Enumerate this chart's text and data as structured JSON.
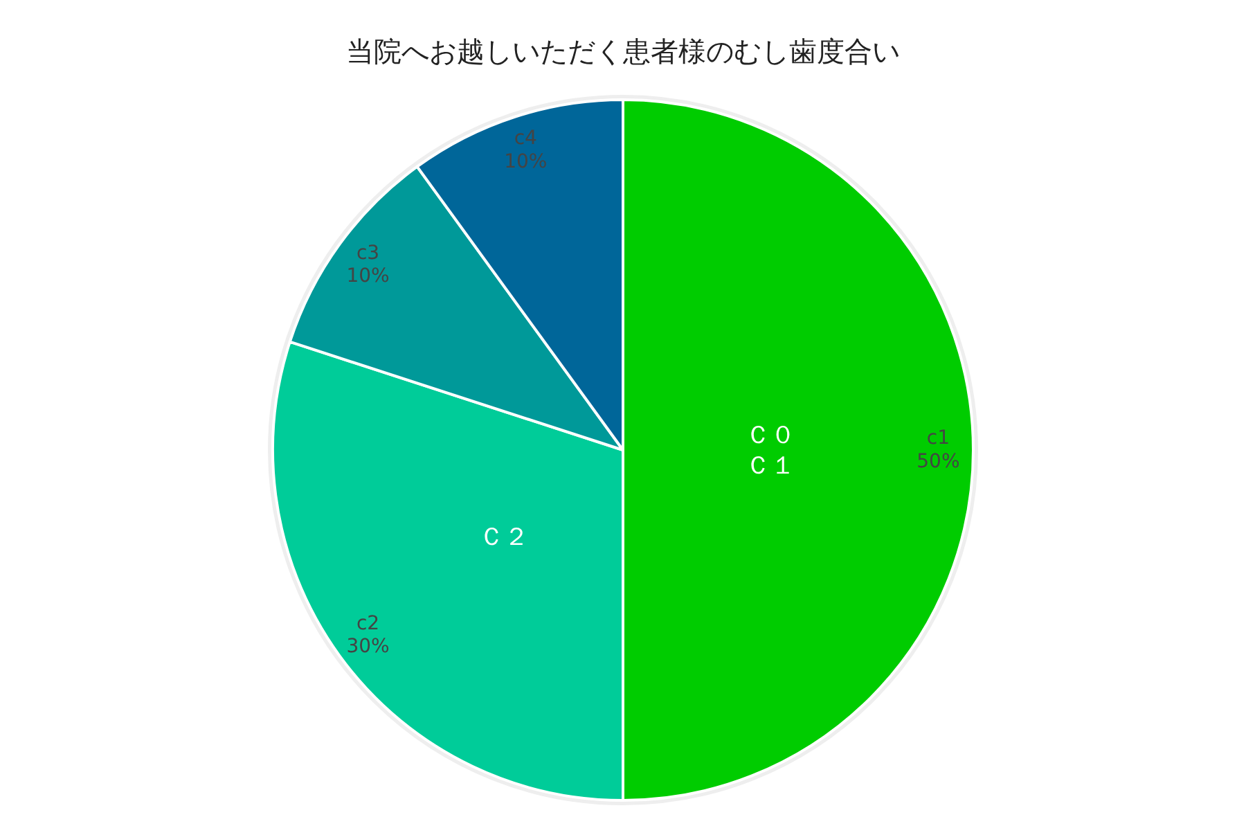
{
  "chart_data": {
    "type": "pie",
    "title": "当院へお越しいただく患者様のむし歯度合い",
    "categories": [
      "c1",
      "c2",
      "c3",
      "c4"
    ],
    "values": [
      50,
      30,
      10,
      10
    ],
    "value_labels": [
      "50%",
      "30%",
      "10%",
      "10%"
    ],
    "colors": [
      "#00cc00",
      "#00cc99",
      "#009999",
      "#006699"
    ],
    "annotations": [
      {
        "text": "Ｃ０",
        "x": "c1"
      },
      {
        "text": "Ｃ１",
        "x": "c1"
      },
      {
        "text": "Ｃ２",
        "x": "c2"
      }
    ]
  }
}
